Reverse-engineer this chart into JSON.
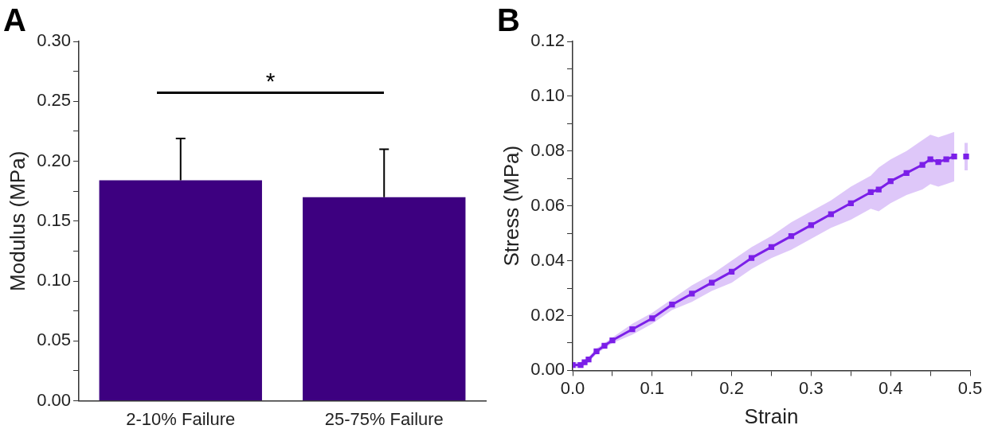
{
  "chart_data": [
    {
      "type": "bar",
      "title": "A",
      "ylabel": "Modulus (MPa)",
      "categories": [
        "2-10% Failure",
        "25-75% Failure"
      ],
      "series": [
        {
          "color": "#3d0080",
          "values": [
            0.184,
            0.17
          ],
          "errors": [
            [
              0.184,
              0.219
            ],
            [
              0.17,
              0.21
            ]
          ]
        }
      ],
      "ylim": [
        0,
        0.3
      ],
      "yticks": [
        {
          "value": 0,
          "label": "0.00"
        },
        {
          "value": 0.025,
          "label": null
        },
        {
          "value": 0.05,
          "label": "0.05"
        },
        {
          "value": 0.075,
          "label": null
        },
        {
          "value": 0.1,
          "label": "0.10"
        },
        {
          "value": 0.125,
          "label": null
        },
        {
          "value": 0.15,
          "label": "0.15"
        },
        {
          "value": 0.175,
          "label": null
        },
        {
          "value": 0.2,
          "label": "0.20"
        },
        {
          "value": 0.225,
          "label": null
        },
        {
          "value": 0.25,
          "label": "0.25"
        },
        {
          "value": 0.275,
          "label": null
        },
        {
          "value": 0.3,
          "label": "0.30"
        }
      ],
      "annotations": [
        "*"
      ],
      "grid": false,
      "legend": false
    },
    {
      "type": "line",
      "title": "B",
      "xlabel": "Strain",
      "ylabel": "Stress (MPa)",
      "x": [
        0,
        0.01,
        0.015,
        0.02,
        0.03,
        0.04,
        0.05,
        0.075,
        0.1,
        0.125,
        0.15,
        0.175,
        0.2,
        0.225,
        0.25,
        0.275,
        0.3,
        0.325,
        0.35,
        0.375,
        0.385,
        0.4,
        0.42,
        0.44,
        0.45,
        0.46,
        0.47,
        0.48,
        0.488,
        0.495
      ],
      "series": [
        {
          "color": "#7b1fe8",
          "values": [
            0.002,
            0.002,
            0.003,
            0.004,
            0.007,
            0.009,
            0.011,
            0.015,
            0.019,
            0.024,
            0.028,
            0.032,
            0.036,
            0.041,
            0.045,
            0.049,
            0.053,
            0.057,
            0.061,
            0.065,
            0.066,
            0.069,
            0.072,
            0.075,
            0.077,
            0.076,
            0.077,
            0.078,
            null,
            0.078
          ],
          "lower": [
            0.001,
            0.001,
            0.002,
            0.003,
            0.006,
            0.008,
            0.01,
            0.013,
            0.017,
            0.022,
            0.025,
            0.029,
            0.032,
            0.037,
            0.041,
            0.044,
            0.048,
            0.052,
            0.055,
            0.059,
            0.058,
            0.061,
            0.064,
            0.066,
            0.068,
            0.067,
            0.068,
            0.069,
            null,
            0.073
          ],
          "upper": [
            0.003,
            0.003,
            0.004,
            0.005,
            0.008,
            0.01,
            0.012,
            0.017,
            0.021,
            0.026,
            0.031,
            0.035,
            0.04,
            0.045,
            0.049,
            0.054,
            0.058,
            0.062,
            0.067,
            0.071,
            0.074,
            0.077,
            0.08,
            0.084,
            0.086,
            0.085,
            0.086,
            0.087,
            null,
            0.083
          ]
        }
      ],
      "xlim": [
        0,
        0.5
      ],
      "xticks": [
        {
          "value": 0,
          "label": "0.0"
        },
        {
          "value": 0.05,
          "label": null
        },
        {
          "value": 0.1,
          "label": "0.1"
        },
        {
          "value": 0.15,
          "label": null
        },
        {
          "value": 0.2,
          "label": "0.2"
        },
        {
          "value": 0.25,
          "label": null
        },
        {
          "value": 0.3,
          "label": "0.3"
        },
        {
          "value": 0.35,
          "label": null
        },
        {
          "value": 0.4,
          "label": "0.4"
        },
        {
          "value": 0.45,
          "label": null
        },
        {
          "value": 0.5,
          "label": "0.5"
        }
      ],
      "ylim": [
        0,
        0.12
      ],
      "yticks": [
        {
          "value": 0,
          "label": "0.00"
        },
        {
          "value": 0.01,
          "label": null
        },
        {
          "value": 0.02,
          "label": "0.02"
        },
        {
          "value": 0.03,
          "label": null
        },
        {
          "value": 0.04,
          "label": "0.04"
        },
        {
          "value": 0.05,
          "label": null
        },
        {
          "value": 0.06,
          "label": "0.06"
        },
        {
          "value": 0.07,
          "label": null
        },
        {
          "value": 0.08,
          "label": "0.08"
        },
        {
          "value": 0.09,
          "label": null
        },
        {
          "value": 0.1,
          "label": "0.10"
        },
        {
          "value": 0.11,
          "label": null
        },
        {
          "value": 0.12,
          "label": "0.12"
        }
      ],
      "marker": "square",
      "line_style": "solid",
      "grid": false,
      "legend": false
    }
  ]
}
